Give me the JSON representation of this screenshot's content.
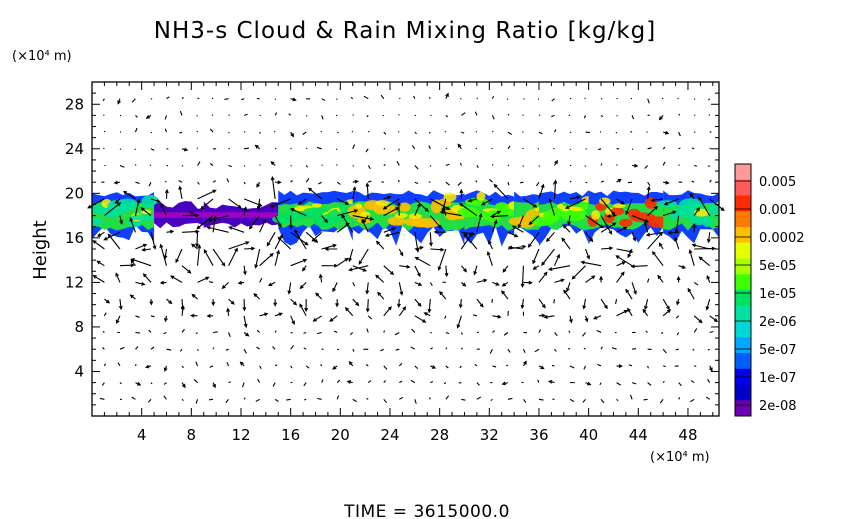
{
  "chart_data": {
    "type": "heatmap",
    "title": "NH3-s Cloud & Rain Mixing Ratio [kg/kg]",
    "ylabel": "Height",
    "x_unit": "(×10⁴ m)",
    "y_unit": "(×10⁴ m)",
    "xlim": [
      0,
      50.5
    ],
    "ylim": [
      0,
      30
    ],
    "x_ticks": [
      4,
      8,
      12,
      16,
      20,
      24,
      28,
      32,
      36,
      40,
      44,
      48
    ],
    "y_ticks": [
      4,
      8,
      12,
      16,
      20,
      24,
      28
    ],
    "footer": "TIME = 3615000.0",
    "colorbar": {
      "labels": [
        "0.005",
        "0.001",
        "0.0002",
        "5e-05",
        "1e-05",
        "2e-06",
        "5e-07",
        "1e-07",
        "2e-08"
      ],
      "colors": [
        "#ff9a9a",
        "#ff5a5a",
        "#ff2a00",
        "#ff7a00",
        "#ffbf00",
        "#e6ff00",
        "#a8ff00",
        "#3cff00",
        "#00e060",
        "#00e0a0",
        "#00d6d6",
        "#00a8ff",
        "#0060ff",
        "#0000ee",
        "#0000c8",
        "#6a00b0"
      ]
    },
    "cloud_layer": {
      "y_bottom_approx": 16,
      "y_top_approx": 20,
      "segments": [
        {
          "x_start": 0,
          "x_end": 5,
          "level": "2e-06"
        },
        {
          "x_start": 5,
          "x_end": 9,
          "level": "2e-08"
        },
        {
          "x_start": 9,
          "x_end": 15,
          "level": "1e-07"
        },
        {
          "x_start": 15,
          "x_end": 21,
          "level": "1e-05"
        },
        {
          "x_start": 21,
          "x_end": 30,
          "level": "0.0002"
        },
        {
          "x_start": 30,
          "x_end": 34,
          "level": "5e-05"
        },
        {
          "x_start": 34,
          "x_end": 36,
          "level": "0.0002"
        },
        {
          "x_start": 36,
          "x_end": 40,
          "level": "5e-05"
        },
        {
          "x_start": 40,
          "x_end": 46,
          "level": "0.001"
        },
        {
          "x_start": 46,
          "x_end": 50.5,
          "level": "2e-06"
        }
      ]
    },
    "vector_field": "wind arrows on a regular grid"
  }
}
